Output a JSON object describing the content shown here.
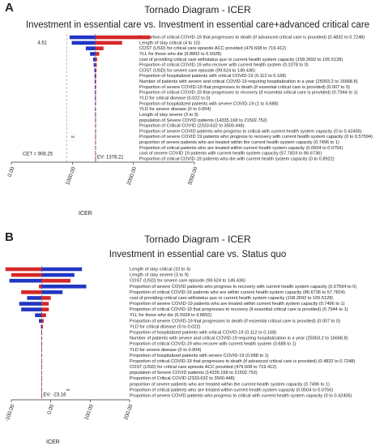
{
  "chart_data": [
    {
      "type": "tornado",
      "panel": "A",
      "title": "Tornado Diagram - ICER",
      "subtitle": "Investment in essential care vs. Investment in essential care+advanced critical care",
      "xlabel": "ICER",
      "categories": [
        "Proportion of critical COVID-19 that progresses to death (if advanced critical care is provided) (0.4832 to 0.7248)",
        "Length of stay critical (4 to 10)",
        "COST (USD) for critical care episode ACC provided (479.608 to 719.412)",
        "YLL for those who die (9.8892 to 6.5928)",
        "cost of providing critical care withstatus quo or current health system capacity (158.2692 to 105.5128)",
        "Proportion of critical COVID-19 who recover with current health system (0.1078 to 0)",
        "COST (USD) for severe care episode (99.624 to 149.436)",
        "Proportion of hospitalized patients with critical COVID-19 (0.112 to 0.168)",
        "Number of patients with severe and critical COVID-19 requiring hospitalization in a year (25003.2 to 16668.8)",
        "Proportion of severe COVID-19 that progresses to death (if essential critical care is provided) (0.007 to 0)",
        "Proportion of critical COVID-19 that progresses to recovery (if essential critical care is provided) (0.7944 to 1)",
        "YLD for critical disease (0.022 to 0)",
        "Proportion of hospitalized patients with severe COVID-19 (1 to 0.688)",
        "YLD for severe disease (0 to 0.004)",
        "Length of stay severe (3 to 9)",
        "population of Severe COVID patients (14335.168 to 21502.752)",
        "Proportion of Critical COVID (2333.632 to 3500.448)",
        "Proportion of severe COVID patients who progress to critical with current health system capacity (0 to 0.42405)",
        "Proportion of severe COVID 19 patients who progress to recovery with current health system capacity (0 to 0.57594)",
        "proportion of severe patients who are treated within the current health system capacity (0.7496 to 1)",
        "Proportion of critical patients who are treated within current health system capacity (0.0504 to 0.0756)",
        "cost of severe COVID 19 patients with current health system capacity (57.7824 to 86.6736)",
        "Proportion of critical COVID-19 patients who die with current health system capacity (0 to 0.8922)"
      ],
      "series": [
        {
          "color": "#2036c4",
          "values": [
            954,
            990,
            1220,
            1290,
            1340,
            1350,
            1360,
            1363,
            1365,
            1367,
            1368,
            1369,
            1370,
            1371,
            1372,
            1373,
            1374,
            1374,
            1375,
            1376,
            1376,
            1377,
            1377
          ]
        },
        {
          "color": "#d62728",
          "values": [
            2278,
            1815,
            1510,
            1440,
            1405,
            1400,
            1395,
            1392,
            1390,
            1389,
            1388,
            1387,
            1386,
            1385,
            1384,
            1383,
            1382,
            1382,
            1381,
            1380,
            1380,
            1379,
            1379
          ]
        }
      ],
      "ev": {
        "value": 1378.21,
        "label": "EV: 1378.21"
      },
      "cet": {
        "value": 908.25,
        "label": "CET = 908.25"
      },
      "annotations": [
        "4.61",
        "∞"
      ],
      "xlim": [
        0,
        3000
      ],
      "xticks": [
        {
          "value": 0,
          "label": "0.00"
        },
        {
          "value": 1000,
          "label": "1000.00"
        },
        {
          "value": 2000,
          "label": "2000.00"
        },
        {
          "value": 3000,
          "label": "3000.00"
        }
      ]
    },
    {
      "type": "tornado",
      "panel": "B",
      "title": "Tornado Diagram - ICER",
      "subtitle": "Investment in essential care vs. Status quo",
      "xlabel": "ICER",
      "categories": [
        "Length of stay critical (10 to 4)",
        "Length of stay severe (3 to 9)",
        "COST (USD) for severe care episode (99.624 to 149.436)",
        "Proportion of severe COVID patients who progress to recovery with current health system capacity (0.57594 to 0)",
        "Proportion of critical COVID-19 patients who are within current health system capacity (86.6736 to 57.7824)",
        "cost of providing critical care withstatus quo or current health system capacity (158.2692 to 105.5128)",
        "Proportion of severe COVID-19 patients who are treated within current health system capacity (0.7496 to 1)",
        "Proportion of critical COVID-19 that progresses to recovery (if essential critical care is provided) (0.7944 to 1)",
        "YLL for those who die (6.5928 to 9.8892)",
        "Proportion of severe COVID-19 that progresses to death (if essential critical care is provided) (0.007 to 0)",
        "YLD for critical disease (0 to 0.022)",
        "Proportion of hospitalized patients with critical COVID-19 (0.112 to 0.168)",
        "Number of patients with severe and critical COVID-19 requiring hospitalization in a year (25003.2 to 16668.8)",
        "Proportion of critical COVID-19 who recover with current health system (0.688 to 1)",
        "YLD for severe disease (0 to 0.004)",
        "Proportion of hospitalized patients with severe COVID-19 (0.688 to 1)",
        "Proportion of critical COVID-19 that progresses to death (if advanced critical care is provided) (0.4832 to 0.7248)",
        "COST (USD) for critical care episode ACC provided (479.608 to 719.412)",
        "population of Severe COVID patients (14335.168 to 21502.752)",
        "Proportion of Critical COVID (2333.632 to 3500.448)",
        "proportion of severe patients who are treated within the current health system capacity (0.7496 to 1)",
        "Proportion of critical patients who are treated within current health system capacity (0.0504 to 0.0756)",
        "Proportion of severe COVID patients who progress to critical with current health system capacity (0 to 0.42405)"
      ],
      "series": [
        {
          "color": "#2036c4",
          "values": [
            79,
            60,
            -105,
            90,
            30,
            -60,
            -80,
            -75,
            -40,
            -30,
            -25,
            -24,
            -24,
            -24,
            -23.5,
            -23.5,
            -23.5,
            -23.3,
            -23.3,
            -23.3,
            -23.2,
            -23.2,
            -23.2
          ]
        },
        {
          "color": "#d62728",
          "values": [
            -115,
            -100,
            50,
            -30,
            -75,
            0,
            -5,
            -5,
            -12,
            -18,
            -20,
            -22,
            -22.5,
            -22.5,
            -22.8,
            -22.8,
            -22.8,
            -23,
            -23,
            -23,
            -23.1,
            -23.1,
            -23.1
          ]
        }
      ],
      "ev": {
        "value": -23.16,
        "label": "EV: -23.16"
      },
      "annotations": [
        "∞"
      ],
      "xlim": [
        -100,
        200
      ],
      "xticks": [
        {
          "value": -100,
          "label": "-100.00"
        },
        {
          "value": 0,
          "label": "0.00"
        },
        {
          "value": 100,
          "label": "100.00"
        },
        {
          "value": 200,
          "label": "200.00"
        }
      ]
    }
  ]
}
